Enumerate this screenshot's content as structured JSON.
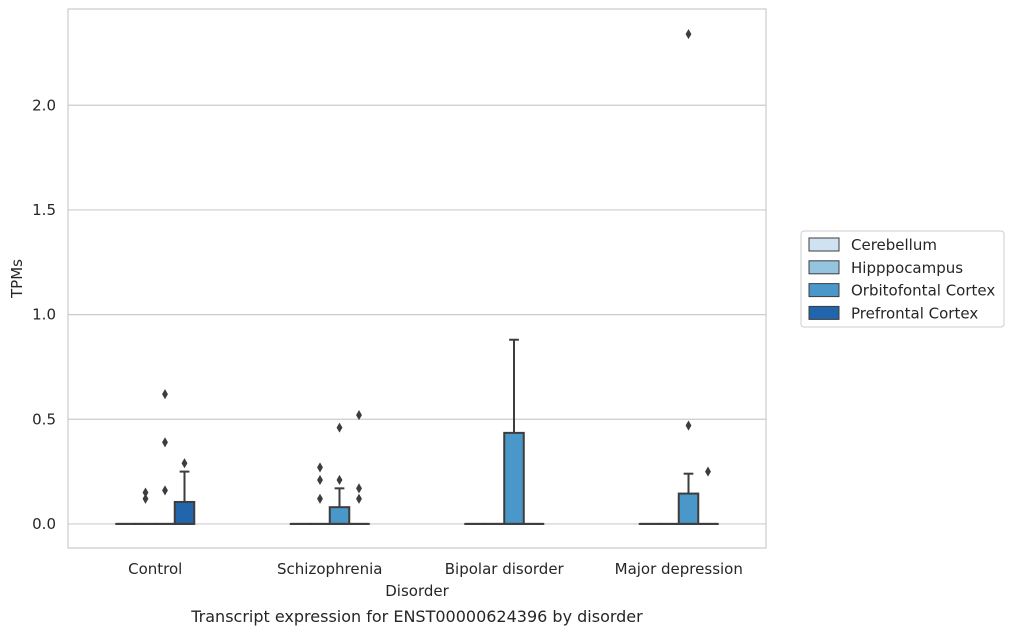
{
  "chart_data": {
    "type": "box",
    "title": "",
    "caption": "Transcript expression for ENST00000624396 by disorder",
    "xlabel": "Disorder",
    "ylabel": "TPMs",
    "ylim": [
      -0.115,
      2.46
    ],
    "yticks": [
      0.0,
      0.5,
      1.0,
      1.5,
      2.0
    ],
    "ytick_labels": [
      "0.0",
      "0.5",
      "1.0",
      "1.5",
      "2.0"
    ],
    "grid": true,
    "legend_position": "right",
    "categories": [
      "Control",
      "Schizophrenia",
      "Bipolar disorder",
      "Major depression"
    ],
    "series": [
      {
        "name": "Cerebellum",
        "color": "#d0e1f2",
        "boxes": [
          {
            "q1": 0,
            "median": 0,
            "q3": 0,
            "whisker_low": 0,
            "whisker_high": 0,
            "outliers": []
          },
          {
            "q1": 0,
            "median": 0,
            "q3": 0,
            "whisker_low": 0,
            "whisker_high": 0,
            "outliers": []
          },
          {
            "q1": 0,
            "median": 0,
            "q3": 0,
            "whisker_low": 0,
            "whisker_high": 0,
            "outliers": []
          },
          {
            "q1": 0,
            "median": 0,
            "q3": 0,
            "whisker_low": 0,
            "whisker_high": 0,
            "outliers": []
          }
        ]
      },
      {
        "name": "Hipppocampus",
        "color": "#94c4df",
        "boxes": [
          {
            "q1": 0,
            "median": 0,
            "q3": 0,
            "whisker_low": 0,
            "whisker_high": 0,
            "outliers": [
              0.12,
              0.15
            ]
          },
          {
            "q1": 0,
            "median": 0,
            "q3": 0,
            "whisker_low": 0,
            "whisker_high": 0,
            "outliers": [
              0.12,
              0.21,
              0.27
            ]
          },
          {
            "q1": 0,
            "median": 0,
            "q3": 0,
            "whisker_low": 0,
            "whisker_high": 0,
            "outliers": []
          },
          {
            "q1": 0,
            "median": 0,
            "q3": 0,
            "whisker_low": 0,
            "whisker_high": 0,
            "outliers": []
          }
        ]
      },
      {
        "name": "Orbitofontal Cortex",
        "color": "#4a98c9",
        "boxes": [
          {
            "q1": 0,
            "median": 0,
            "q3": 0,
            "whisker_low": 0,
            "whisker_high": 0,
            "outliers": [
              0.16,
              0.39,
              0.62
            ]
          },
          {
            "q1": 0,
            "median": 0,
            "q3": 0.08,
            "whisker_low": 0,
            "whisker_high": 0.17,
            "outliers": [
              0.21,
              0.46
            ]
          },
          {
            "q1": 0,
            "median": 0,
            "q3": 0.435,
            "whisker_low": 0,
            "whisker_high": 0.88,
            "outliers": []
          },
          {
            "q1": 0,
            "median": 0,
            "q3": 0.145,
            "whisker_low": 0,
            "whisker_high": 0.24,
            "outliers": [
              0.47,
              2.34
            ]
          }
        ]
      },
      {
        "name": "Prefrontal Cortex",
        "color": "#2166ac",
        "boxes": [
          {
            "q1": 0,
            "median": 0,
            "q3": 0.105,
            "whisker_low": 0,
            "whisker_high": 0.25,
            "outliers": [
              0.29
            ]
          },
          {
            "q1": 0,
            "median": 0,
            "q3": 0,
            "whisker_low": 0,
            "whisker_high": 0,
            "outliers": [
              0.12,
              0.17,
              0.52
            ]
          },
          {
            "q1": 0,
            "median": 0,
            "q3": 0,
            "whisker_low": 0,
            "whisker_high": 0,
            "outliers": []
          },
          {
            "q1": 0,
            "median": 0,
            "q3": 0,
            "whisker_low": 0,
            "whisker_high": 0,
            "outliers": [
              0.25
            ]
          }
        ]
      }
    ]
  }
}
